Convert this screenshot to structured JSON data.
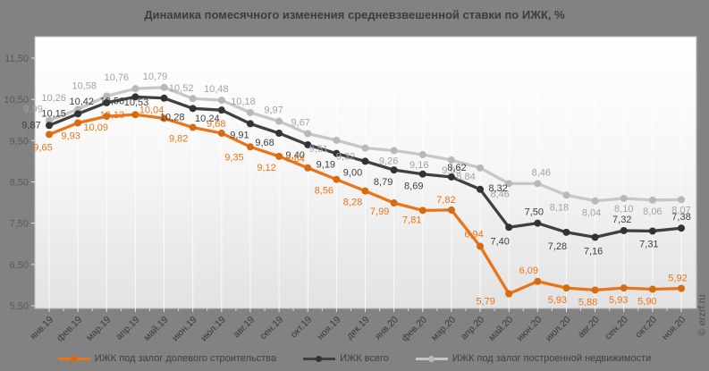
{
  "title": "Динамика помесячного изменения средневзвешенной ставки по ИЖК, %",
  "watermark": "© erzrf.ru",
  "colors": {
    "background": "#828282",
    "plot_top": "#ffffff",
    "plot_bottom": "#e2e2e2",
    "gridline": "#ffffff",
    "axis_label": "#3a3a3a",
    "ytick_label": "#5a5a5a"
  },
  "chart_data": {
    "type": "line",
    "title": "Динамика помесячного изменения средневзвешенной ставки по ИЖК, %",
    "categories": [
      "янв.19",
      "фев.19",
      "мар.19",
      "апр.19",
      "май.19",
      "июн.19",
      "июл.19",
      "авг.19",
      "сен.19",
      "окт.19",
      "ноя.19",
      "дек.19",
      "янв.20",
      "фев.20",
      "мар.20",
      "апр.20",
      "май.20",
      "июн.20",
      "июл.20",
      "авг.20",
      "сен.20",
      "окт.20",
      "ноя.20"
    ],
    "series": [
      {
        "name": "ИЖК под залог долевого строительства",
        "color": "#E8751A",
        "marker_color": "#D86A10",
        "label_color": "#E8751A",
        "values": [
          9.65,
          9.93,
          10.09,
          10.13,
          10.04,
          9.82,
          9.68,
          9.35,
          9.12,
          8.84,
          8.56,
          8.28,
          7.99,
          7.81,
          7.82,
          6.94,
          5.79,
          6.09,
          5.93,
          5.88,
          5.93,
          5.9,
          5.92
        ]
      },
      {
        "name": "ИЖК всего",
        "color": "#404040",
        "marker_color": "#333333",
        "label_color": "#3f3f3f",
        "values": [
          9.87,
          10.15,
          10.42,
          10.56,
          10.53,
          10.28,
          10.24,
          9.91,
          9.68,
          9.4,
          9.19,
          9.0,
          8.79,
          8.69,
          8.62,
          8.32,
          7.4,
          7.5,
          7.28,
          7.16,
          7.32,
          7.31,
          7.38
        ]
      },
      {
        "name": "ИЖК под залог построенной недвижимости",
        "color": "#C7C7C7",
        "marker_color": "#B8B8B8",
        "label_color": "#A3A3A3",
        "values": [
          9.99,
          10.26,
          10.58,
          10.76,
          10.79,
          10.52,
          10.48,
          10.18,
          9.97,
          9.67,
          9.51,
          9.32,
          9.26,
          9.16,
          9.03,
          8.84,
          8.46,
          8.46,
          8.18,
          8.04,
          8.1,
          8.06,
          8.07
        ]
      }
    ],
    "ylim": [
      5.5,
      11.5
    ],
    "yticks": [
      11.5,
      10.5,
      9.5,
      8.5,
      7.5,
      6.5,
      5.5
    ],
    "ytick_labels": [
      "11,50",
      "10,50",
      "9,50",
      "8,50",
      "7,50",
      "6,50",
      "5,50"
    ],
    "decimal_separator": ",",
    "grid": "vertical",
    "legend_position": "bottom"
  }
}
